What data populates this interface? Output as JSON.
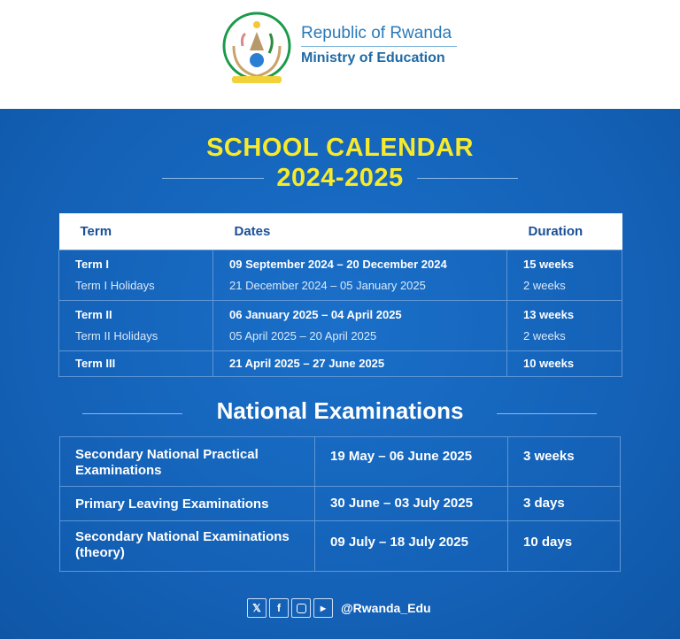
{
  "header": {
    "country": "Republic of Rwanda",
    "ministry": "Ministry of Education"
  },
  "title": {
    "line1": "SCHOOL CALENDAR",
    "line2": "2024-2025"
  },
  "calendar": {
    "columns": [
      "Term",
      "Dates",
      "Duration"
    ],
    "rows": [
      {
        "term": "Term I",
        "dates": "09 September 2024 – 20 December 2024",
        "duration": "15 weeks",
        "holiday": "Term I Holidays",
        "holiday_dates": "21 December 2024 – 05 January 2025",
        "holiday_duration": "2 weeks"
      },
      {
        "term": "Term II",
        "dates": "06 January 2025 – 04 April 2025",
        "duration": "13 weeks",
        "holiday": "Term II Holidays",
        "holiday_dates": "05 April 2025 – 20 April 2025",
        "holiday_duration": "2 weeks"
      },
      {
        "term": "Term III",
        "dates": "21 April 2025 – 27 June 2025",
        "duration": "10 weeks"
      }
    ]
  },
  "exams": {
    "heading": "National Examinations",
    "rows": [
      {
        "name": "Secondary National Practical Examinations",
        "dates": "19 May – 06 June 2025",
        "duration": "3 weeks"
      },
      {
        "name": "Primary Leaving Examinations",
        "dates": "30 June – 03 July 2025",
        "duration": "3 days"
      },
      {
        "name": "Secondary National Examinations (theory)",
        "dates": "09 July – 18 July 2025",
        "duration": "10 days"
      }
    ]
  },
  "footer": {
    "icons": [
      "x-icon",
      "facebook-icon",
      "instagram-icon",
      "youtube-icon"
    ],
    "handle": "@Rwanda_Edu"
  },
  "colors": {
    "background": "#1462b8",
    "title": "#f7ea2b",
    "brand": "#1f6aa5"
  }
}
